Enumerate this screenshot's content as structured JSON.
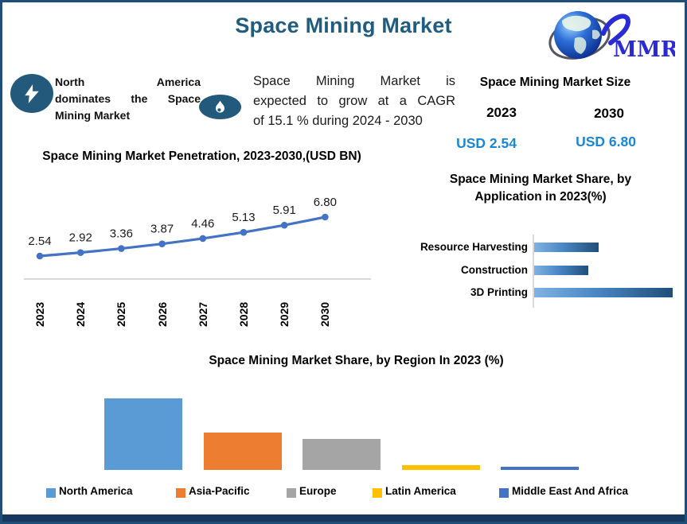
{
  "title": "Space Mining Market",
  "logo": {
    "text": "MMR"
  },
  "callouts": {
    "highlight": {
      "icon": "lightning-icon",
      "text": "North America dominates the Space Mining Market",
      "lines": [
        "North America",
        "dominates the Space",
        "Mining Market"
      ]
    },
    "cagr": {
      "icon": "flame-icon",
      "text": "Space Mining Market is expected to grow at a CAGR of 15.1 % during 2024 - 2030",
      "lines": [
        "Space Mining Market is",
        "expected to grow at a CAGR",
        "of 15.1 % during 2024 - 2030"
      ]
    }
  },
  "market_size": {
    "title": "Space Mining Market Size",
    "columns": [
      {
        "year": "2023",
        "value": "USD 2.54"
      },
      {
        "year": "2030",
        "value": "USD 6.80"
      }
    ],
    "value_color": "#1B87D4"
  },
  "chart_data": [
    {
      "id": "penetration",
      "type": "line",
      "title": "Space Mining Market Penetration, 2023-2030,(USD BN)",
      "x": [
        "2023",
        "2024",
        "2025",
        "2026",
        "2027",
        "2028",
        "2029",
        "2030"
      ],
      "values": [
        2.54,
        2.92,
        3.36,
        3.87,
        4.46,
        5.13,
        5.91,
        6.8
      ],
      "data_labels": true,
      "line_color": "#4472C4",
      "label_color": "#1a1a1a",
      "ylim": [
        2.0,
        7.0
      ],
      "grid": false,
      "legend_position": "none"
    },
    {
      "id": "application_share",
      "type": "bar",
      "orientation": "horizontal",
      "title": "Space Mining Market Share, by Application in 2023(%)",
      "categories": [
        "Resource Harvesting",
        "Construction",
        "3D Printing"
      ],
      "values": [
        25,
        21,
        54
      ],
      "bar_gradient": [
        "#7FB2E2",
        "#1F4E79"
      ],
      "grid": false,
      "legend_position": "none"
    },
    {
      "id": "region_share",
      "type": "bar",
      "orientation": "vertical",
      "title": "Space Mining Market Share, by Region In 2023 (%)",
      "categories": [
        "North America",
        "Asia-Pacific",
        "Europe",
        "Latin America",
        "Middle East And Africa"
      ],
      "values": [
        48,
        25,
        21,
        3,
        2
      ],
      "colors": [
        "#5B9BD5",
        "#ED7D31",
        "#A5A5A5",
        "#FFC000",
        "#4472C4"
      ],
      "grid": false,
      "legend_position": "bottom"
    }
  ],
  "colors": {
    "border": "#1F4E79",
    "bottom_strip": "#17375E",
    "title": "#1F5C80",
    "icon_ellipse": "#235a7c",
    "axis_line": "#D9D9D9"
  }
}
